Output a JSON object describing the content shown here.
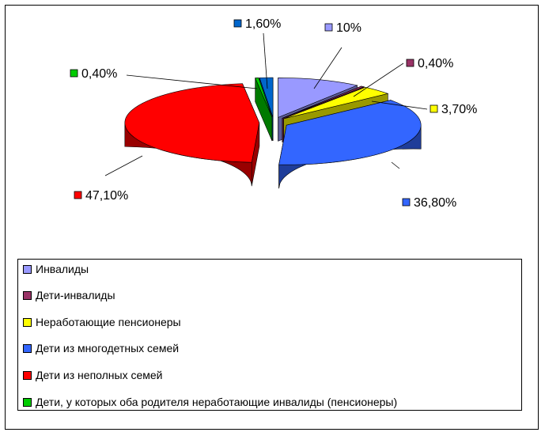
{
  "chart_data": {
    "type": "pie",
    "title": "",
    "categories": [
      "Инвалиды",
      "Дети-инвалиды",
      "Неработающие пенсионеры",
      "Дети из многодетных семей",
      "Дети из неполных семей",
      "Дети, у которых оба родителя неработающие инвалиды (пенсионеры)",
      ""
    ],
    "values": [
      10,
      0.4,
      3.7,
      36.8,
      47.1,
      0.4,
      1.6
    ],
    "labels": [
      "10%",
      "0,40%",
      "3,70%",
      "36,80%",
      "47,10%",
      "0,40%",
      "1,60%"
    ],
    "colors": [
      "#9999FF",
      "#993366",
      "#FFFF00",
      "#3366FF",
      "#FF0000",
      "#00CC00",
      "#0066CC"
    ],
    "legend_position": "bottom",
    "exploded": true,
    "three_d": true
  }
}
